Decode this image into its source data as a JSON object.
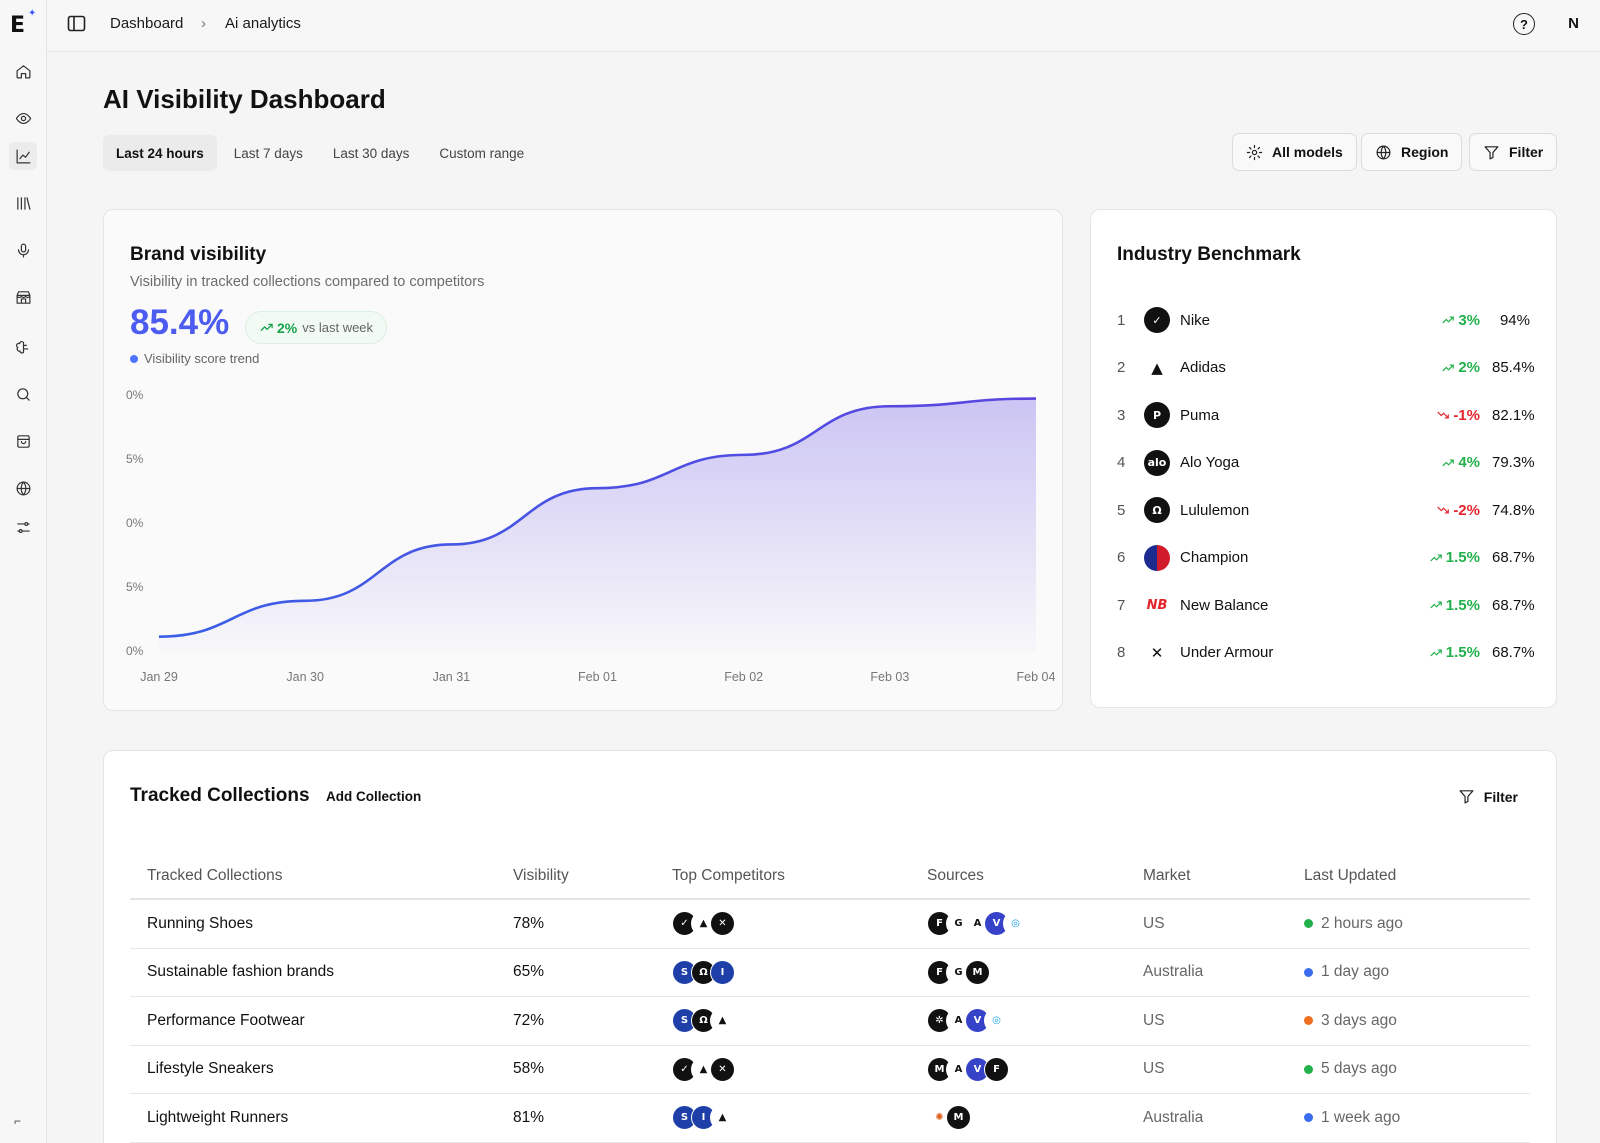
{
  "sidebar": {
    "logo": "E",
    "icons": [
      "home-icon",
      "eye-icon",
      "chart-icon",
      "library-icon",
      "microphone-icon",
      "store-icon",
      "brain-icon",
      "search-icon",
      "bag-icon",
      "globe-icon",
      "sliders-icon"
    ],
    "collapse": "⌐"
  },
  "topbar": {
    "breadcrumb": [
      "Dashboard",
      "Ai analytics"
    ],
    "separator": "›",
    "help": "?",
    "user_initial": "N"
  },
  "page": {
    "title": "AI Visibility Dashboard",
    "ranges": [
      "Last 24 hours",
      "Last 7 days",
      "Last 30 days",
      "Custom range"
    ],
    "active_range": "Last 24 hours",
    "buttons": {
      "models": "All models",
      "region": "Region",
      "filter": "Filter"
    }
  },
  "brand_visibility": {
    "title": "Brand visibility",
    "subtitle": "Visibility in tracked collections compared to competitors",
    "value": "85.4%",
    "change": "2%",
    "change_suffix": "vs last week",
    "legend": "Visibility score trend",
    "accent": "#4c5bf0"
  },
  "chart_data": {
    "type": "area",
    "x": [
      "Jan 29",
      "Jan 30",
      "Jan 31",
      "Feb 01",
      "Feb 02",
      "Feb 03",
      "Feb 04"
    ],
    "values": [
      0.6,
      2.0,
      4.2,
      6.4,
      7.7,
      9.6,
      9.9
    ],
    "y_tick_labels": [
      "0%",
      "5%",
      "0%",
      "5%",
      "0%"
    ],
    "series": [
      {
        "values": [
          0.6,
          2.0,
          4.2,
          6.4,
          7.7,
          9.6,
          9.9
        ]
      }
    ],
    "ylim": [
      0,
      10
    ],
    "grid": false,
    "legend_position": "top-left",
    "line_color": "#5a44e0",
    "fill_color": "#c9c2f3"
  },
  "benchmark": {
    "title": "Industry Benchmark",
    "rows": [
      {
        "rank": "1",
        "name": "Nike",
        "logo": "✓",
        "style": "",
        "change": "3%",
        "dir": "up",
        "score": "94%"
      },
      {
        "rank": "2",
        "name": "Adidas",
        "logo": "▲",
        "style": "plain",
        "change": "2%",
        "dir": "up",
        "score": "85.4%"
      },
      {
        "rank": "3",
        "name": "Puma",
        "logo": "P",
        "style": "",
        "change": "-1%",
        "dir": "down",
        "score": "82.1%"
      },
      {
        "rank": "4",
        "name": "Alo Yoga",
        "logo": "alo",
        "style": "",
        "change": "4%",
        "dir": "up",
        "score": "79.3%"
      },
      {
        "rank": "5",
        "name": "Lululemon",
        "logo": "Ω",
        "style": "",
        "change": "-2%",
        "dir": "down",
        "score": "74.8%"
      },
      {
        "rank": "6",
        "name": "Champion",
        "logo": "",
        "style": "champ",
        "change": "1.5%",
        "dir": "up",
        "score": "68.7%"
      },
      {
        "rank": "7",
        "name": "New Balance",
        "logo": "NB",
        "style": "nb",
        "change": "1.5%",
        "dir": "up",
        "score": "68.7%"
      },
      {
        "rank": "8",
        "name": "Under Armour",
        "logo": "✕",
        "style": "plain",
        "change": "1.5%",
        "dir": "up",
        "score": "68.7%"
      }
    ]
  },
  "collections": {
    "title": "Tracked Collections",
    "add_label": "Add Collection",
    "filter_label": "Filter",
    "columns": [
      "Tracked Collections",
      "Visibility",
      "Top Competitors",
      "Sources",
      "Market",
      "Last Updated"
    ],
    "rows": [
      {
        "name": "Running Shoes",
        "visibility": "78%",
        "competitors": [
          [
            "✓",
            ""
          ],
          [
            "▲",
            "light"
          ],
          [
            "✕",
            ""
          ]
        ],
        "sources": [
          [
            "F",
            ""
          ],
          [
            "G",
            "light"
          ],
          [
            "A",
            "light"
          ],
          [
            "V",
            "indigo"
          ],
          [
            "◎",
            "sky"
          ]
        ],
        "market": "US",
        "updated": "2 hours ago",
        "status_color": "#22b04b"
      },
      {
        "name": "Sustainable fashion brands",
        "visibility": "65%",
        "competitors": [
          [
            "S",
            "blue"
          ],
          [
            "Ω",
            ""
          ],
          [
            "I",
            "blue"
          ]
        ],
        "sources": [
          [
            "F",
            ""
          ],
          [
            "G",
            "light"
          ],
          [
            "M",
            ""
          ]
        ],
        "market": "Australia",
        "updated": "1 day ago",
        "status_color": "#3b6cf0"
      },
      {
        "name": "Performance Footwear",
        "visibility": "72%",
        "competitors": [
          [
            "S",
            "blue"
          ],
          [
            "Ω",
            ""
          ],
          [
            "▲",
            "light"
          ]
        ],
        "sources": [
          [
            "✲",
            ""
          ],
          [
            "A",
            "light"
          ],
          [
            "V",
            "indigo"
          ],
          [
            "◎",
            "sky"
          ]
        ],
        "market": "US",
        "updated": "3 days ago",
        "status_color": "#f07020"
      },
      {
        "name": "Lifestyle Sneakers",
        "visibility": "58%",
        "competitors": [
          [
            "✓",
            ""
          ],
          [
            "▲",
            "light"
          ],
          [
            "✕",
            ""
          ]
        ],
        "sources": [
          [
            "M",
            ""
          ],
          [
            "A",
            "light"
          ],
          [
            "V",
            "indigo"
          ],
          [
            "F",
            ""
          ]
        ],
        "market": "US",
        "updated": "5 days ago",
        "status_color": "#22b04b"
      },
      {
        "name": "Lightweight Runners",
        "visibility": "81%",
        "competitors": [
          [
            "S",
            "blue"
          ],
          [
            "I",
            "blue"
          ],
          [
            "▲",
            "light"
          ]
        ],
        "sources": [
          [
            "✺",
            "orange"
          ],
          [
            "M",
            ""
          ]
        ],
        "market": "Australia",
        "updated": "1 week ago",
        "status_color": "#3b6cf0"
      }
    ]
  }
}
